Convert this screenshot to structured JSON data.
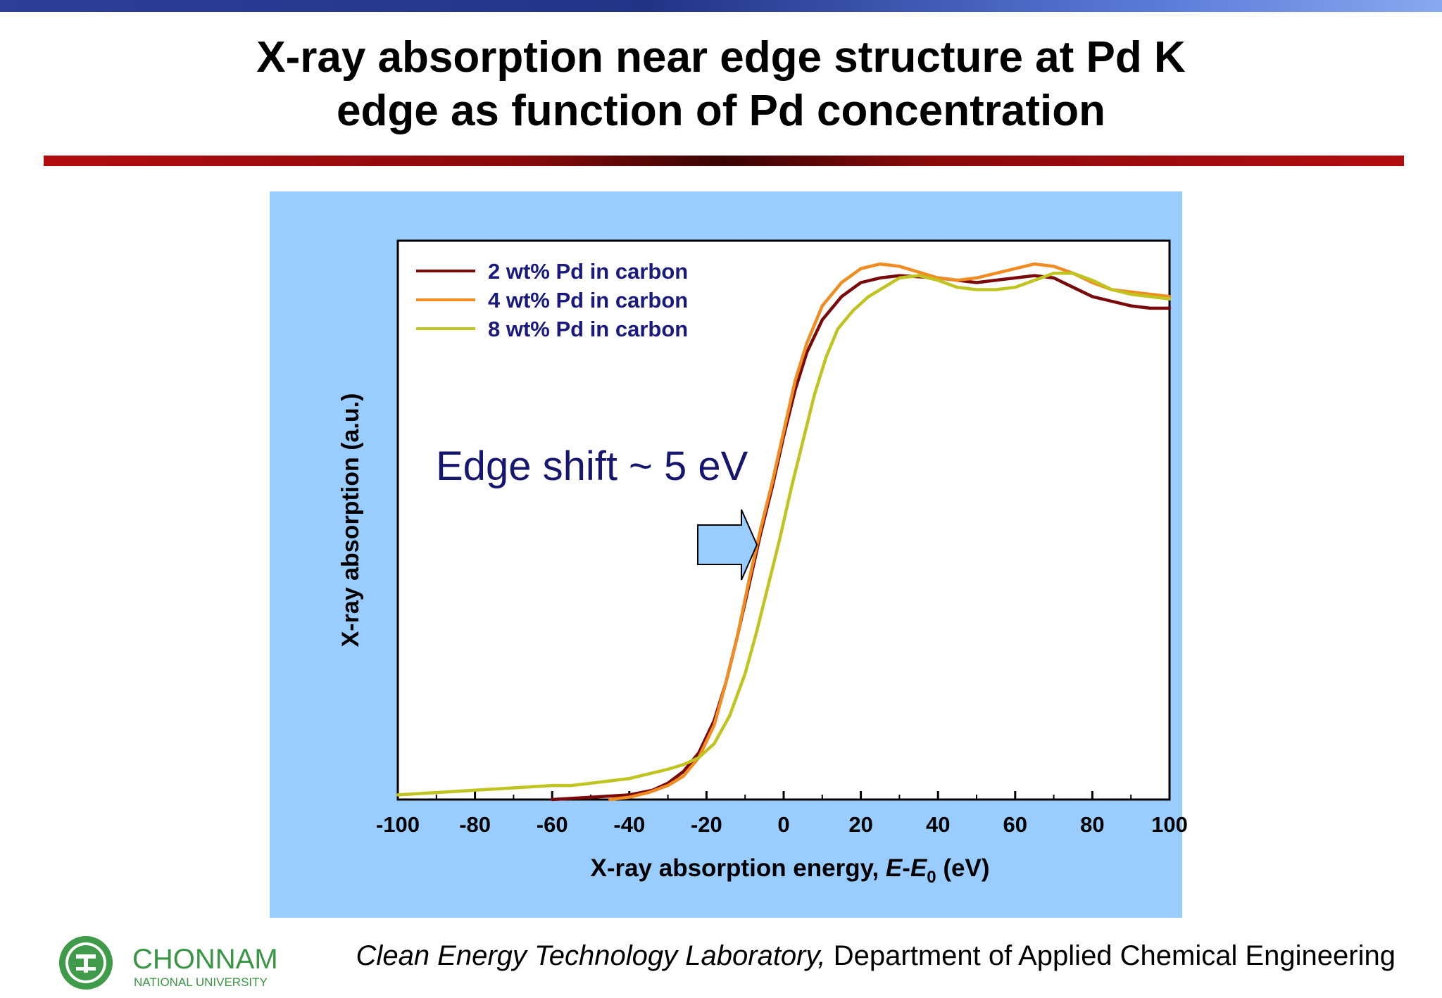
{
  "slide": {
    "title_line1": "X-ray absorption near edge structure at Pd K",
    "title_line2": "edge as function of Pd concentration"
  },
  "chart_data": {
    "type": "line",
    "title": "",
    "xlabel_prefix": "X-ray absorption energy, ",
    "xlabel_var1": "E",
    "xlabel_dash": "-",
    "xlabel_var2": "E",
    "xlabel_sub": "0",
    "xlabel_suffix": " (eV)",
    "ylabel": "X-ray absorption (a.u.)",
    "xlim": [
      -100,
      100
    ],
    "ylim": [
      0,
      1.2
    ],
    "x_ticks": [
      -100,
      -80,
      -60,
      -40,
      -20,
      0,
      20,
      40,
      60,
      80,
      100
    ],
    "x_tick_labels": [
      "-100",
      "-80",
      "-60",
      "-40",
      "-20",
      "0",
      "20",
      "40",
      "60",
      "80",
      "100"
    ],
    "grid": false,
    "legend_position": "top-left",
    "annotation": "Edge shift ~ 5 eV",
    "series": [
      {
        "name": "2 wt% Pd in carbon",
        "color": "#7a0a0a",
        "points": [
          [
            -60,
            0.0
          ],
          [
            -50,
            0.005
          ],
          [
            -40,
            0.01
          ],
          [
            -34,
            0.02
          ],
          [
            -30,
            0.035
          ],
          [
            -26,
            0.06
          ],
          [
            -22,
            0.1
          ],
          [
            -18,
            0.17
          ],
          [
            -15,
            0.25
          ],
          [
            -12,
            0.35
          ],
          [
            -9,
            0.46
          ],
          [
            -6,
            0.57
          ],
          [
            -3,
            0.67
          ],
          [
            0,
            0.78
          ],
          [
            3,
            0.88
          ],
          [
            6,
            0.96
          ],
          [
            10,
            1.03
          ],
          [
            15,
            1.08
          ],
          [
            20,
            1.11
          ],
          [
            25,
            1.12
          ],
          [
            30,
            1.125
          ],
          [
            40,
            1.12
          ],
          [
            50,
            1.11
          ],
          [
            60,
            1.12
          ],
          [
            65,
            1.125
          ],
          [
            70,
            1.12
          ],
          [
            75,
            1.1
          ],
          [
            80,
            1.08
          ],
          [
            85,
            1.07
          ],
          [
            90,
            1.06
          ],
          [
            95,
            1.055
          ],
          [
            100,
            1.055
          ]
        ]
      },
      {
        "name": "4 wt% Pd in carbon",
        "color": "#f08c22",
        "points": [
          [
            -45,
            0.0
          ],
          [
            -40,
            0.005
          ],
          [
            -35,
            0.015
          ],
          [
            -30,
            0.03
          ],
          [
            -26,
            0.05
          ],
          [
            -22,
            0.09
          ],
          [
            -18,
            0.16
          ],
          [
            -15,
            0.25
          ],
          [
            -12,
            0.35
          ],
          [
            -9,
            0.47
          ],
          [
            -6,
            0.58
          ],
          [
            -3,
            0.68
          ],
          [
            0,
            0.79
          ],
          [
            3,
            0.9
          ],
          [
            6,
            0.98
          ],
          [
            10,
            1.06
          ],
          [
            15,
            1.11
          ],
          [
            20,
            1.14
          ],
          [
            25,
            1.15
          ],
          [
            30,
            1.145
          ],
          [
            40,
            1.12
          ],
          [
            45,
            1.115
          ],
          [
            50,
            1.12
          ],
          [
            60,
            1.14
          ],
          [
            65,
            1.15
          ],
          [
            70,
            1.145
          ],
          [
            75,
            1.13
          ],
          [
            80,
            1.11
          ],
          [
            85,
            1.095
          ],
          [
            90,
            1.09
          ],
          [
            100,
            1.08
          ]
        ]
      },
      {
        "name": "8 wt% Pd in carbon",
        "color": "#bfc420",
        "points": [
          [
            -100,
            0.01
          ],
          [
            -90,
            0.015
          ],
          [
            -80,
            0.02
          ],
          [
            -70,
            0.025
          ],
          [
            -60,
            0.03
          ],
          [
            -55,
            0.03
          ],
          [
            -50,
            0.035
          ],
          [
            -45,
            0.04
          ],
          [
            -40,
            0.045
          ],
          [
            -35,
            0.055
          ],
          [
            -30,
            0.065
          ],
          [
            -26,
            0.075
          ],
          [
            -22,
            0.09
          ],
          [
            -18,
            0.12
          ],
          [
            -14,
            0.18
          ],
          [
            -10,
            0.27
          ],
          [
            -7,
            0.36
          ],
          [
            -4,
            0.46
          ],
          [
            -1,
            0.56
          ],
          [
            2,
            0.67
          ],
          [
            5,
            0.77
          ],
          [
            8,
            0.87
          ],
          [
            11,
            0.95
          ],
          [
            14,
            1.01
          ],
          [
            18,
            1.05
          ],
          [
            22,
            1.08
          ],
          [
            26,
            1.1
          ],
          [
            30,
            1.12
          ],
          [
            35,
            1.125
          ],
          [
            40,
            1.115
          ],
          [
            45,
            1.1
          ],
          [
            50,
            1.095
          ],
          [
            55,
            1.095
          ],
          [
            60,
            1.1
          ],
          [
            65,
            1.115
          ],
          [
            70,
            1.13
          ],
          [
            75,
            1.13
          ],
          [
            80,
            1.115
          ],
          [
            85,
            1.095
          ],
          [
            90,
            1.085
          ],
          [
            100,
            1.075
          ]
        ]
      }
    ]
  },
  "footer": {
    "logo_name": "CHONNAM",
    "logo_sub": "NATIONAL UNIVERSITY",
    "lab": "Clean Energy Technology Laboratory,",
    "dept": " Department of Applied Chemical Engineering"
  }
}
